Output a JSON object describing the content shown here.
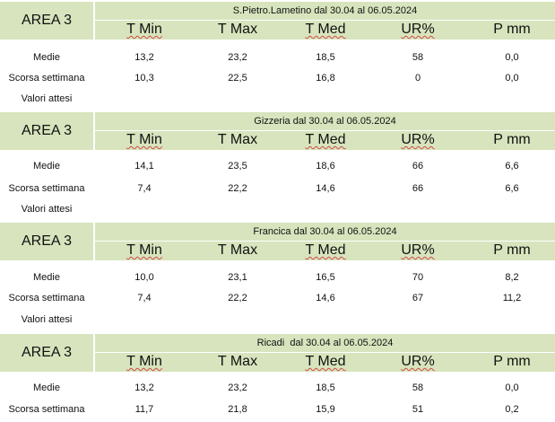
{
  "area_label": "AREA 3",
  "column_headers": [
    "T Min",
    "T Max",
    "T Med",
    "UR%",
    "P mm"
  ],
  "row_labels": [
    "Medie",
    "Scorsa settimana",
    "Valori attesi"
  ],
  "blocks": [
    {
      "title": "S.Pietro.Lametino dal 30.04 al 06.05.2024",
      "medie": [
        "13,2",
        "23,2",
        "18,5",
        "58",
        "0,0"
      ],
      "scorsa": [
        "10,3",
        "22,5",
        "16,8",
        "0",
        "0,0"
      ]
    },
    {
      "title": "Gizzeria dal 30.04 al 06.05.2024",
      "medie": [
        "14,1",
        "23,5",
        "18,6",
        "66",
        "6,6"
      ],
      "scorsa": [
        "7,4",
        "22,2",
        "14,6",
        "66",
        "6,6"
      ]
    },
    {
      "title": "Francica dal 30.04 al 06.05.2024",
      "medie": [
        "10,0",
        "23,1",
        "16,5",
        "70",
        "8,2"
      ],
      "scorsa": [
        "7,4",
        "22,2",
        "14,6",
        "67",
        "11,2"
      ]
    },
    {
      "title": "Ricadi  dal 30.04 al 06.05.2024",
      "medie": [
        "13,2",
        "23,2",
        "18,5",
        "58",
        "0,0"
      ],
      "scorsa": [
        "11,7",
        "21,8",
        "15,9",
        "51",
        "0,2"
      ]
    }
  ]
}
